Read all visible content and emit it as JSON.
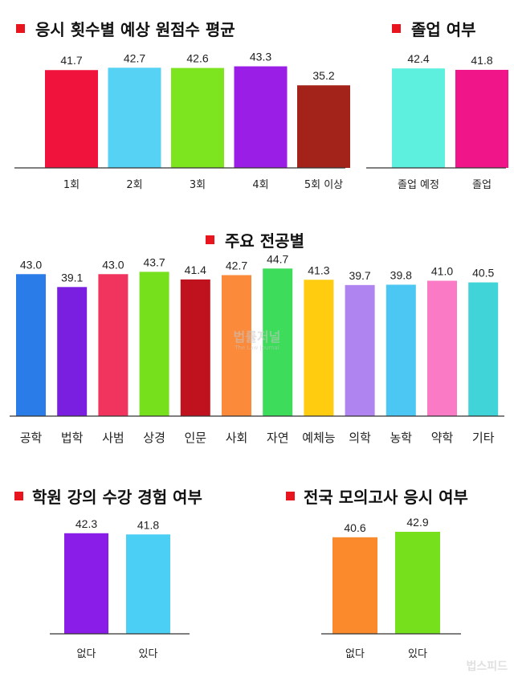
{
  "watermark": "법률저널",
  "watermark_sub": "The Law Journal",
  "corner_mark": "법스피드",
  "chart_data": [
    {
      "id": "attempts",
      "type": "bar",
      "title": "응시 횟수별 예상 원점수 평균",
      "categories": [
        "1회",
        "2회",
        "3회",
        "4회",
        "5회 이상"
      ],
      "values": [
        41.7,
        42.7,
        42.6,
        43.3,
        35.2
      ],
      "value_labels": [
        "41.7",
        "42.7",
        "42.6",
        "43.3",
        "35.2"
      ],
      "colors": [
        "#f0143c",
        "#56d2f5",
        "#7de51f",
        "#9b1ee6",
        "#a3221a"
      ]
    },
    {
      "id": "graduation",
      "type": "bar",
      "title": "졸업 여부",
      "categories": [
        "졸업 예정",
        "졸업"
      ],
      "values": [
        42.4,
        41.8
      ],
      "value_labels": [
        "42.4",
        "41.8"
      ],
      "colors": [
        "#5ef0df",
        "#f0168a"
      ]
    },
    {
      "id": "major",
      "type": "bar",
      "title": "주요 전공별",
      "categories": [
        "공학",
        "법학",
        "사범",
        "상경",
        "인문",
        "사회",
        "자연",
        "예체능",
        "의학",
        "농학",
        "약학",
        "기타"
      ],
      "values": [
        43.0,
        39.1,
        43.0,
        43.7,
        41.4,
        42.7,
        44.7,
        41.3,
        39.7,
        39.8,
        41.0,
        40.5
      ],
      "value_labels": [
        "43.0",
        "39.1",
        "43.0",
        "43.7",
        "41.4",
        "42.7",
        "44.7",
        "41.3",
        "39.7",
        "39.8",
        "41.0",
        "40.5"
      ],
      "colors": [
        "#2a7ce8",
        "#7a1ee0",
        "#f0345e",
        "#76e01c",
        "#c0111f",
        "#fb8a3a",
        "#3ddc5a",
        "#ffcc10",
        "#b084f0",
        "#4cc6f2",
        "#fa7ac6",
        "#40d4d8"
      ]
    },
    {
      "id": "academy",
      "type": "bar",
      "title": "학원 강의 수강 경험 여부",
      "categories": [
        "없다",
        "있다"
      ],
      "values": [
        42.3,
        41.8
      ],
      "value_labels": [
        "42.3",
        "41.8"
      ],
      "colors": [
        "#8a1ee8",
        "#4ccff4"
      ]
    },
    {
      "id": "mock",
      "type": "bar",
      "title": "전국 모의고사 응시 여부",
      "categories": [
        "없다",
        "있다"
      ],
      "values": [
        40.6,
        42.9
      ],
      "value_labels": [
        "40.6",
        "42.9"
      ],
      "colors": [
        "#fb8a2c",
        "#76e01c"
      ]
    }
  ]
}
